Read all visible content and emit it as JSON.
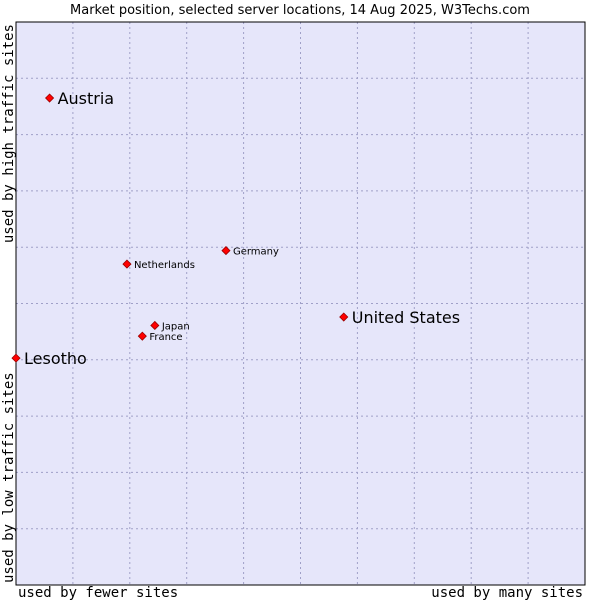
{
  "chart_data": {
    "type": "scatter",
    "title": "Market position, selected server locations, 14 Aug 2025, W3Techs.com",
    "xlabel_low": "used by fewer sites",
    "xlabel_high": "used by many sites",
    "ylabel_low": "used by low traffic sites",
    "ylabel_high": "used by high traffic sites",
    "xlim": [
      0,
      100
    ],
    "ylim": [
      0,
      100
    ],
    "grid": true,
    "points": [
      {
        "label": "Austria",
        "x": 5.9,
        "y": 86.5,
        "size": "large"
      },
      {
        "label": "Germany",
        "x": 36.9,
        "y": 59.4,
        "size": "small"
      },
      {
        "label": "Netherlands",
        "x": 19.5,
        "y": 57.0,
        "size": "small"
      },
      {
        "label": "United States",
        "x": 57.6,
        "y": 47.6,
        "size": "large"
      },
      {
        "label": "Japan",
        "x": 24.4,
        "y": 46.1,
        "size": "small"
      },
      {
        "label": "France",
        "x": 22.2,
        "y": 44.2,
        "size": "small"
      },
      {
        "label": "Lesotho",
        "x": 0.0,
        "y": 40.3,
        "size": "large"
      }
    ],
    "colors": {
      "plot_background": "#e6e6fa",
      "marker_fill": "#ff0000",
      "marker_stroke": "#990000",
      "frame": "#000000"
    }
  }
}
